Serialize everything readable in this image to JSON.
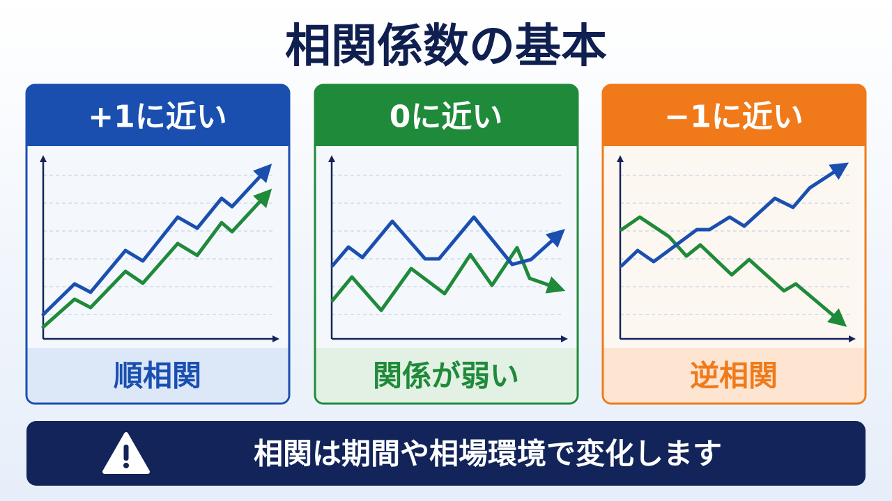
{
  "title": "相関係数の基本",
  "panels": [
    {
      "header": "+1に近い",
      "footer": "順相関"
    },
    {
      "header": "0に近い",
      "footer": "関係が弱い"
    },
    {
      "header": "−1に近い",
      "footer": "逆相関"
    }
  ],
  "note": "相関は期間や相場環境で変化します"
}
